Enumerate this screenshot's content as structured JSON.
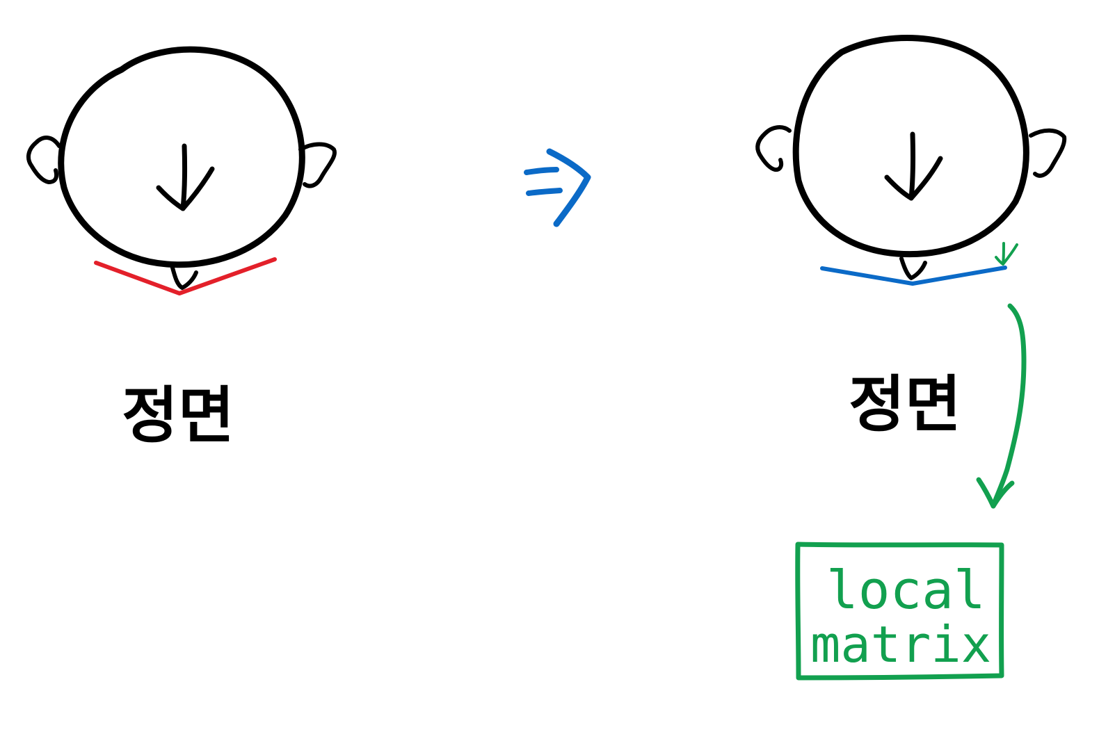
{
  "colors": {
    "ink": "#000000",
    "before_line": "#e3202a",
    "arrow": "#0b6ac7",
    "after_line": "#0b6ac7",
    "annotation": "#12a04f",
    "background": "#ffffff"
  },
  "left_figure": {
    "label": "정면",
    "icon": "head-top-view-icon"
  },
  "transition": {
    "icon": "implies-arrow-icon"
  },
  "right_figure": {
    "label": "정면",
    "icon": "head-top-view-icon"
  },
  "annotation": {
    "box_text_line1": "local",
    "box_text_line2": "matrix"
  }
}
